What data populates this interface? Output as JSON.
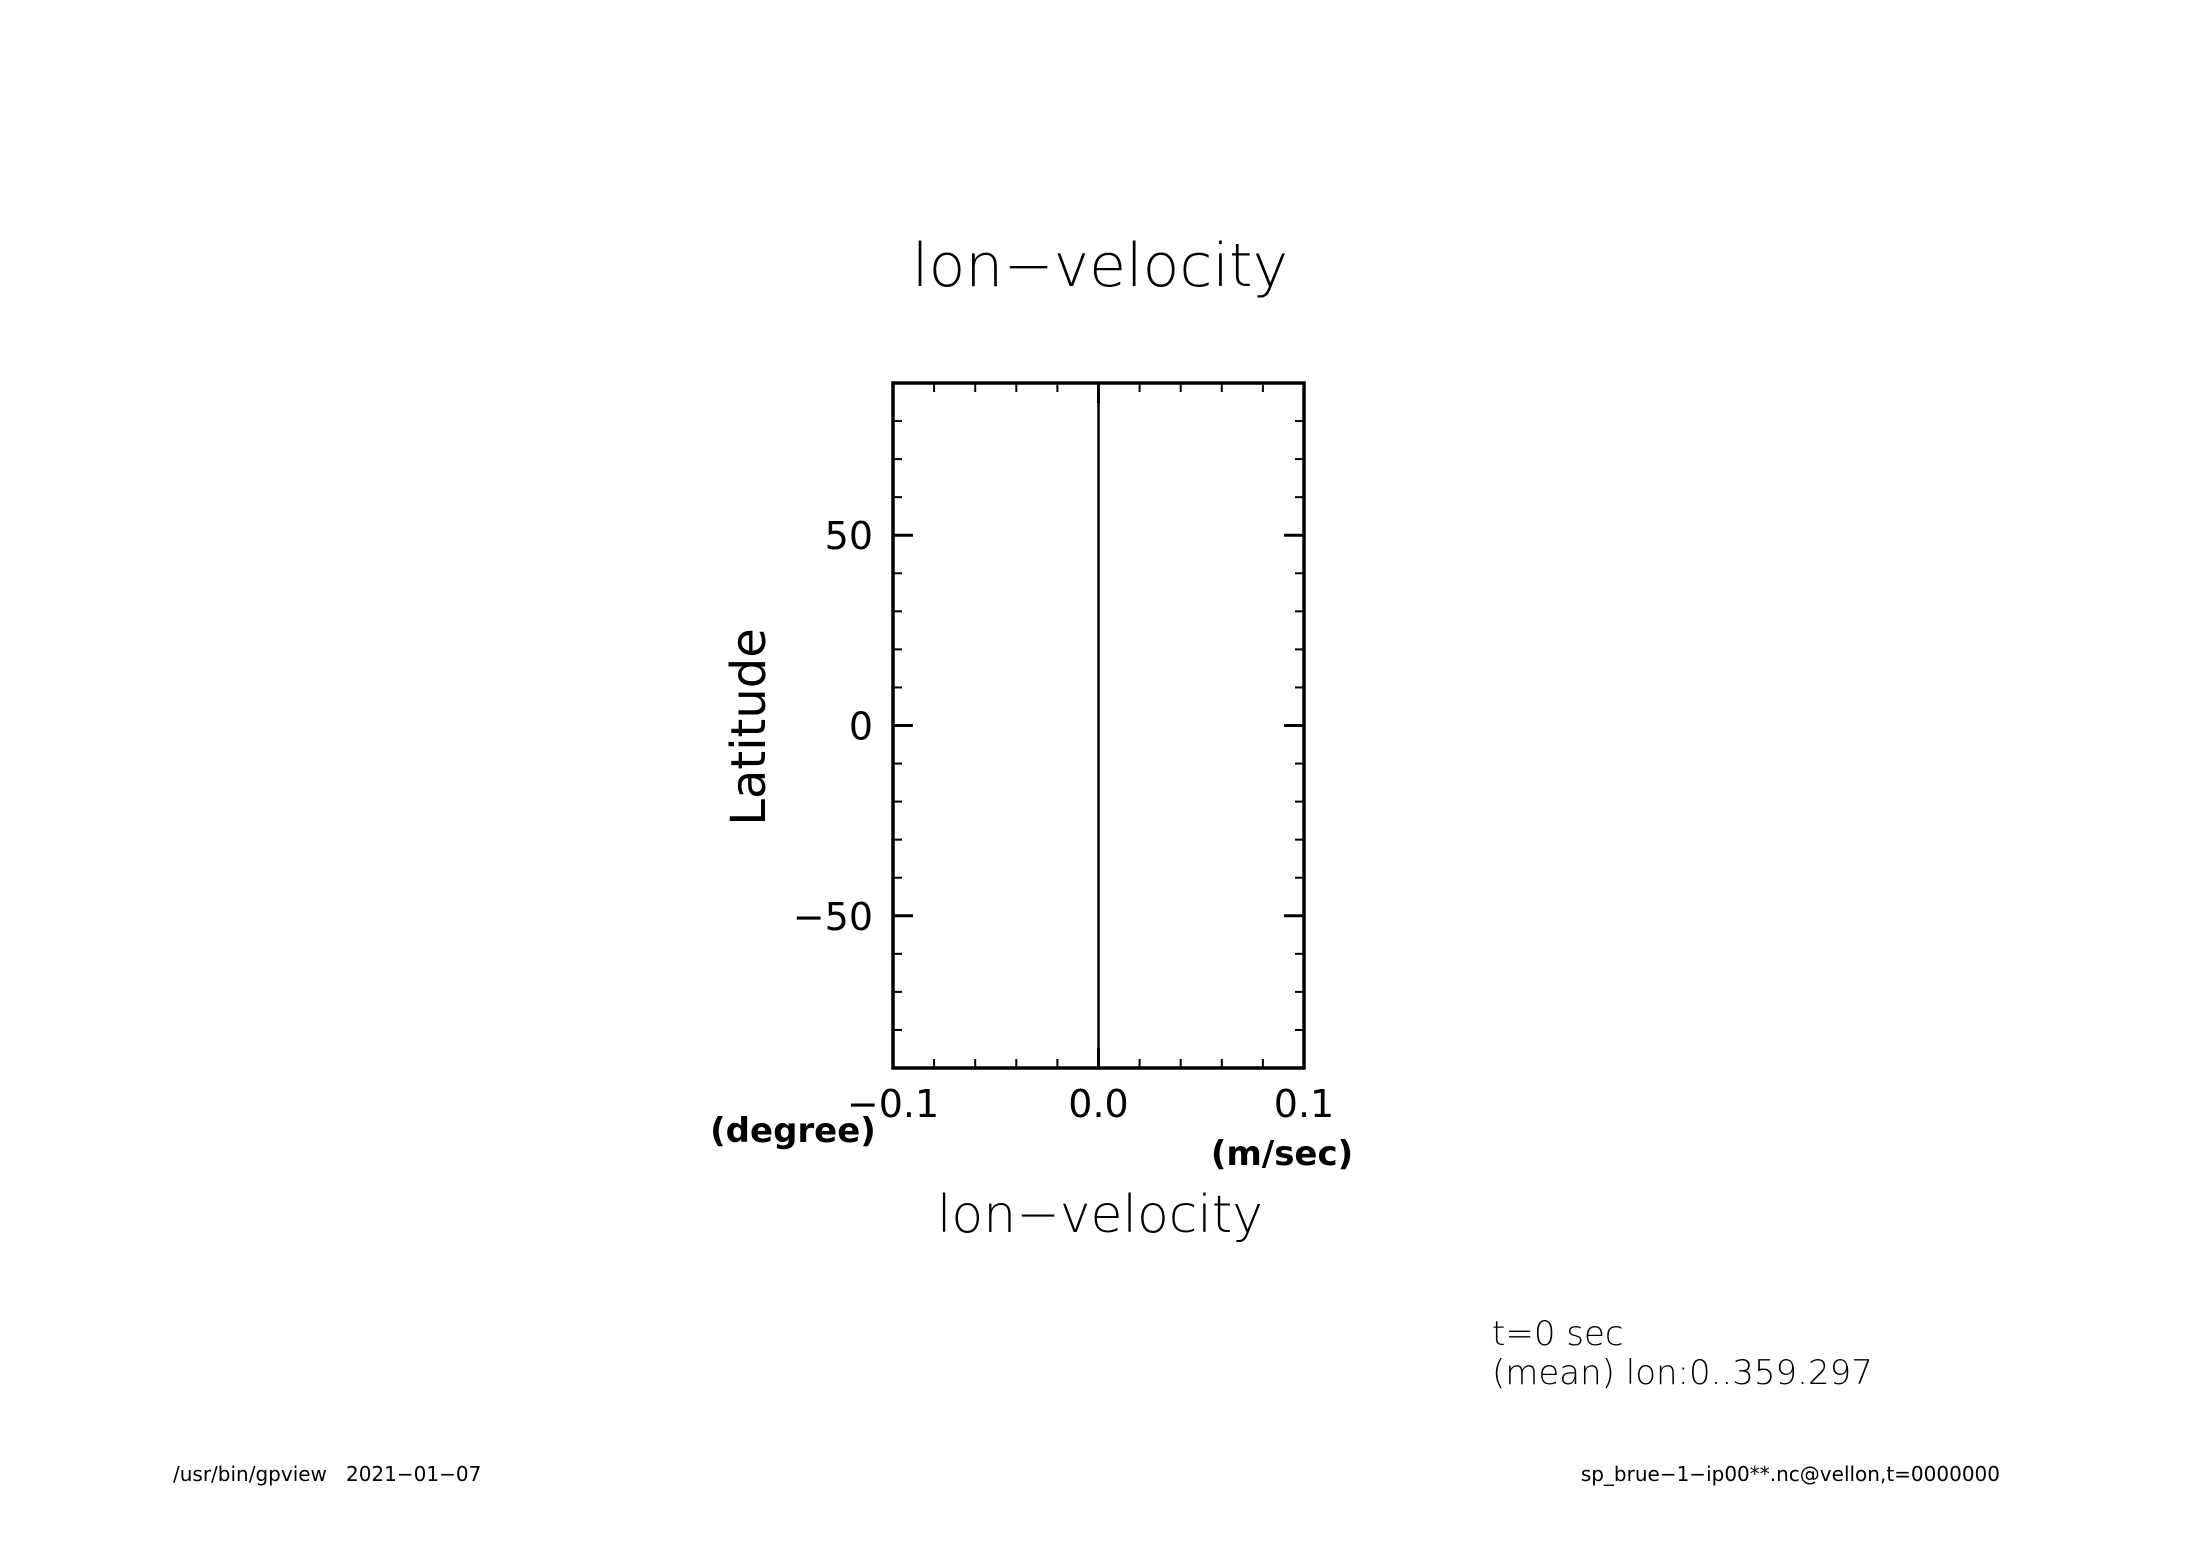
{
  "chart_data": {
    "type": "line",
    "title": "lon−velocity",
    "xlabel": "lon−velocity",
    "xunit": "(m/sec)",
    "ylabel": "Latitude",
    "yunit": "(degree)",
    "xlim": [
      -0.1,
      0.1
    ],
    "ylim": [
      -90,
      90
    ],
    "xticks": [
      {
        "value": -0.1,
        "label": "−0.1"
      },
      {
        "value": 0.0,
        "label": "0.0"
      },
      {
        "value": 0.1,
        "label": "0.1"
      }
    ],
    "yticks": [
      {
        "value": 50,
        "label": "50"
      },
      {
        "value": 0,
        "label": "0"
      },
      {
        "value": -50,
        "label": "−50"
      }
    ],
    "x_minor_step": 0.02,
    "y_minor_step": 10,
    "series": [
      {
        "color": "#000000",
        "x": [
          0.0,
          0.0
        ],
        "y": [
          -88.6,
          88.6
        ]
      }
    ],
    "grid": false
  },
  "annotations": {
    "time": "t=0 sec",
    "mean": "(mean) lon:0..359.297"
  },
  "footer": {
    "left": "/usr/bin/gpview   2021−01−07",
    "right": "sp_brue−1−ip00**.nc@vellon,t=0000000"
  }
}
